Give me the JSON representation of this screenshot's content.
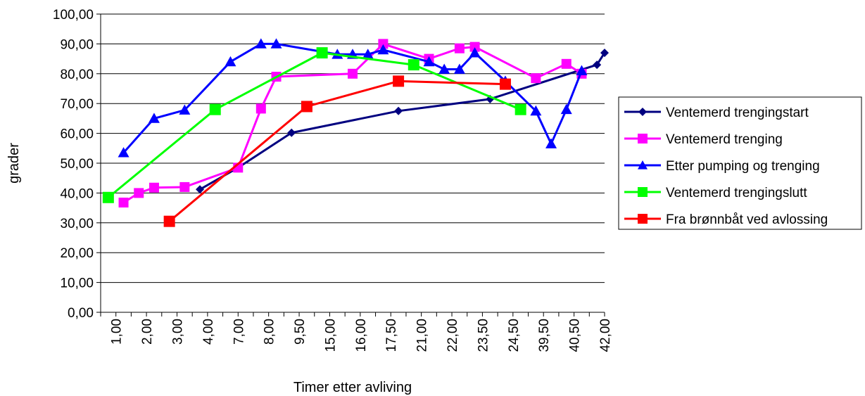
{
  "chart_data": {
    "type": "line",
    "title": "",
    "xlabel": "Timer etter avliving",
    "ylabel": "grader",
    "ylim": [
      0,
      100
    ],
    "y_step": 10,
    "y_tick_labels": [
      "0,00",
      "10,00",
      "20,00",
      "30,00",
      "40,00",
      "50,00",
      "60,00",
      "70,00",
      "80,00",
      "90,00",
      "100,00"
    ],
    "x_tick_labels": [
      "1,00",
      "2,00",
      "3,00",
      "4,00",
      "7,00",
      "8,00",
      "9,50",
      "15,00",
      "16,00",
      "17,50",
      "21,00",
      "22,00",
      "23,50",
      "24,50",
      "39,50",
      "40,50",
      "42,00"
    ],
    "x_range": [
      0,
      33
    ],
    "grid": true,
    "legend_position": "right",
    "series": [
      {
        "name": "Ventemerd trengingstart",
        "color": "#000080",
        "marker": "diamond",
        "x": [
          6.5,
          9.0,
          12.5,
          19.5,
          25.5,
          32.5,
          33.0
        ],
        "y": [
          41.2,
          48.5,
          60.2,
          67.5,
          71.5,
          83.0,
          87.0
        ]
      },
      {
        "name": "Ventemerd trenging",
        "color": "#ff00ff",
        "marker": "square",
        "x": [
          1.5,
          2.5,
          3.5,
          5.5,
          9.0,
          10.5,
          11.5,
          16.5,
          18.5,
          21.5,
          23.5,
          24.5,
          28.5,
          30.5,
          31.5
        ],
        "y": [
          36.8,
          40.0,
          41.8,
          42.0,
          48.5,
          68.3,
          79.0,
          80.0,
          90.0,
          85.0,
          88.5,
          89.0,
          78.5,
          83.3,
          80.0
        ]
      },
      {
        "name": "Etter pumping og trenging",
        "color": "#0000ff",
        "marker": "triangle",
        "x": [
          1.5,
          3.5,
          5.5,
          8.5,
          10.5,
          11.5,
          15.5,
          16.5,
          17.5,
          18.5,
          21.5,
          22.5,
          23.5,
          24.5,
          26.5,
          28.5,
          29.5,
          30.5,
          31.5
        ],
        "y": [
          53.5,
          65.0,
          67.8,
          84.0,
          90.0,
          90.0,
          86.5,
          86.5,
          86.5,
          88.0,
          84.0,
          81.5,
          81.5,
          87.0,
          77.5,
          67.5,
          56.5,
          68.0,
          81.0
        ]
      },
      {
        "name": "Ventemerd trengingslutt",
        "color": "#00ff00",
        "marker": "square",
        "x": [
          0.5,
          7.5,
          14.5,
          20.5,
          27.5
        ],
        "y": [
          38.5,
          68.0,
          87.0,
          83.0,
          68.0
        ]
      },
      {
        "name": "Fra brønnbåt ved avlossing",
        "color": "#ff0000",
        "marker": "square",
        "x": [
          4.5,
          13.5,
          19.5,
          26.5
        ],
        "y": [
          30.5,
          69.0,
          77.5,
          76.5
        ]
      }
    ]
  }
}
